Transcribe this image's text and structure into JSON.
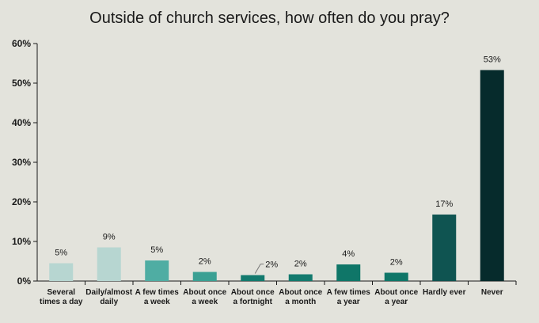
{
  "chart_data": {
    "type": "bar",
    "title": "Outside of church services, how often do you pray?",
    "xlabel": "",
    "ylabel": "",
    "ylim": [
      0,
      60
    ],
    "yticks": [
      "0%",
      "10%",
      "20%",
      "30%",
      "40%",
      "50%",
      "60%"
    ],
    "grid": false,
    "categories": [
      [
        "Several",
        "times a day"
      ],
      [
        "Daily/almost",
        "daily"
      ],
      [
        "A few times",
        "a week"
      ],
      [
        "About once",
        "a week"
      ],
      [
        "About once",
        "a fortnight"
      ],
      [
        "About once",
        "a month"
      ],
      [
        "A few times",
        "a year"
      ],
      [
        "About once",
        "a year"
      ],
      [
        "Hardly ever"
      ],
      [
        "Never"
      ]
    ],
    "values": [
      4.5,
      8.5,
      5.2,
      2.3,
      1.5,
      1.7,
      4.2,
      2.1,
      16.8,
      53.3
    ],
    "labels": [
      "5%",
      "9%",
      "5%",
      "2%",
      "2%",
      "2%",
      "4%",
      "2%",
      "17%",
      "53%"
    ],
    "colors": [
      "#b7d6d1",
      "#b7d6d1",
      "#4fada3",
      "#3aa093",
      "#137a6e",
      "#137a6e",
      "#0f7668",
      "#0f7668",
      "#0f5451",
      "#062b2c"
    ]
  }
}
